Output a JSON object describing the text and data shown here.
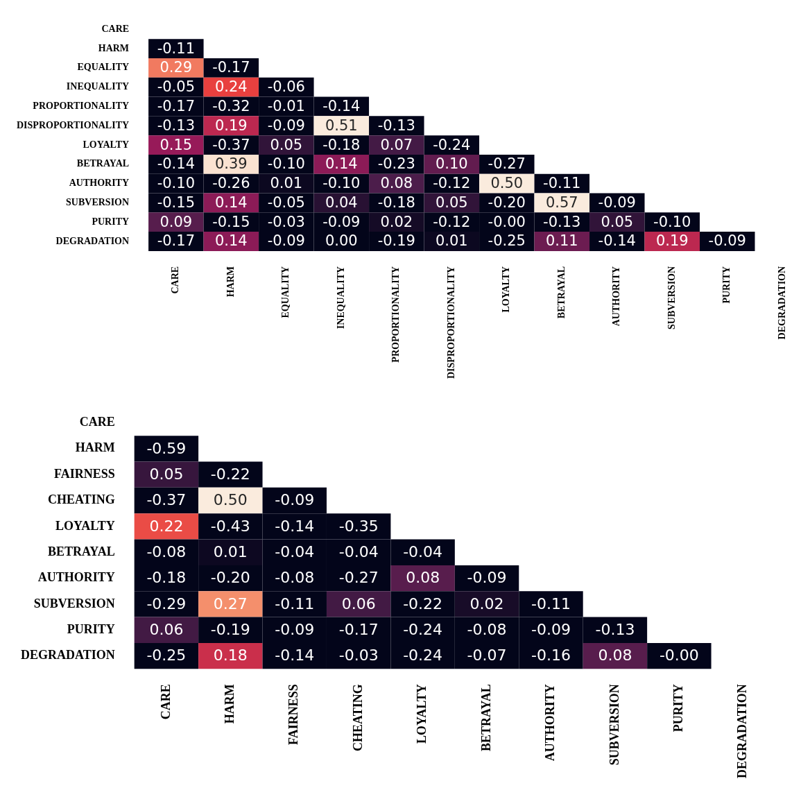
{
  "chart_data": [
    {
      "type": "heatmap",
      "categories": [
        "CARE",
        "HARM",
        "EQUALITY",
        "INEQUALITY",
        "PROPORTIONALITY",
        "DISPROPORTIONALITY",
        "LOYALTY",
        "BETRAYAL",
        "AUTHORITY",
        "SUBVERSION",
        "PURITY",
        "DEGRADATION"
      ],
      "y_categories": [
        "CARE",
        "HARM",
        "EQUALITY",
        "INEQUALITY",
        "PROPORTIONALITY",
        "DISPROPORTIONALITY",
        "LOYALTY",
        "BETRAYAL",
        "AUTHORITY",
        "SUBVERSION",
        "PURITY",
        "DEGRADATION"
      ],
      "cells": [
        [
          null,
          null,
          null,
          null,
          null,
          null,
          null,
          null,
          null,
          null,
          null,
          null
        ],
        [
          -0.11,
          null,
          null,
          null,
          null,
          null,
          null,
          null,
          null,
          null,
          null,
          null
        ],
        [
          0.29,
          -0.17,
          null,
          null,
          null,
          null,
          null,
          null,
          null,
          null,
          null,
          null
        ],
        [
          -0.05,
          0.24,
          -0.06,
          null,
          null,
          null,
          null,
          null,
          null,
          null,
          null,
          null
        ],
        [
          -0.17,
          -0.32,
          -0.01,
          -0.14,
          null,
          null,
          null,
          null,
          null,
          null,
          null,
          null
        ],
        [
          -0.13,
          0.19,
          -0.09,
          0.51,
          -0.13,
          null,
          null,
          null,
          null,
          null,
          null,
          null
        ],
        [
          0.15,
          -0.37,
          0.05,
          -0.18,
          0.07,
          -0.24,
          null,
          null,
          null,
          null,
          null,
          null
        ],
        [
          -0.14,
          0.39,
          -0.1,
          0.14,
          -0.23,
          0.1,
          -0.27,
          null,
          null,
          null,
          null,
          null
        ],
        [
          -0.1,
          -0.26,
          0.01,
          -0.1,
          0.08,
          -0.12,
          0.5,
          -0.11,
          null,
          null,
          null,
          null
        ],
        [
          -0.15,
          0.14,
          -0.05,
          0.04,
          -0.18,
          0.05,
          -0.2,
          0.57,
          -0.09,
          null,
          null,
          null
        ],
        [
          0.09,
          -0.15,
          -0.03,
          -0.09,
          0.02,
          -0.12,
          0,
          -0.13,
          0.05,
          -0.1,
          null,
          null
        ],
        [
          -0.17,
          0.14,
          -0.09,
          0.0,
          -0.19,
          0.01,
          -0.25,
          0.11,
          -0.14,
          0.19,
          -0.09,
          null
        ]
      ],
      "cell_labels": [
        [
          null,
          null,
          null,
          null,
          null,
          null,
          null,
          null,
          null,
          null,
          null,
          null
        ],
        [
          "-0.11",
          null,
          null,
          null,
          null,
          null,
          null,
          null,
          null,
          null,
          null,
          null
        ],
        [
          "0.29",
          "-0.17",
          null,
          null,
          null,
          null,
          null,
          null,
          null,
          null,
          null,
          null
        ],
        [
          "-0.05",
          "0.24",
          "-0.06",
          null,
          null,
          null,
          null,
          null,
          null,
          null,
          null,
          null
        ],
        [
          "-0.17",
          "-0.32",
          "-0.01",
          "-0.14",
          null,
          null,
          null,
          null,
          null,
          null,
          null,
          null
        ],
        [
          "-0.13",
          "0.19",
          "-0.09",
          "0.51",
          "-0.13",
          null,
          null,
          null,
          null,
          null,
          null,
          null
        ],
        [
          "0.15",
          "-0.37",
          "0.05",
          "-0.18",
          "0.07",
          "-0.24",
          null,
          null,
          null,
          null,
          null,
          null
        ],
        [
          "-0.14",
          "0.39",
          "-0.10",
          "0.14",
          "-0.23",
          "0.10",
          "-0.27",
          null,
          null,
          null,
          null,
          null
        ],
        [
          "-0.10",
          "-0.26",
          "0.01",
          "-0.10",
          "0.08",
          "-0.12",
          "0.50",
          "-0.11",
          null,
          null,
          null,
          null
        ],
        [
          "-0.15",
          "0.14",
          "-0.05",
          "0.04",
          "-0.18",
          "0.05",
          "-0.20",
          "0.57",
          "-0.09",
          null,
          null,
          null
        ],
        [
          "0.09",
          "-0.15",
          "-0.03",
          "-0.09",
          "0.02",
          "-0.12",
          "-0.00",
          "-0.13",
          "0.05",
          "-0.10",
          null,
          null
        ],
        [
          "-0.17",
          "0.14",
          "-0.09",
          "0.00",
          "-0.19",
          "0.01",
          "-0.25",
          "0.11",
          "-0.14",
          "0.19",
          "-0.09",
          null
        ]
      ]
    },
    {
      "type": "heatmap",
      "categories": [
        "CARE",
        "HARM",
        "FAIRNESS",
        "CHEATING",
        "LOYALTY",
        "BETRAYAL",
        "AUTHORITY",
        "SUBVERSION",
        "PURITY",
        "DEGRADATION"
      ],
      "y_categories": [
        "CARE",
        "HARM",
        "FAIRNESS",
        "CHEATING",
        "LOYALTY",
        "BETRAYAL",
        "AUTHORITY",
        "SUBVERSION",
        "PURITY",
        "DEGRADATION"
      ],
      "cells": [
        [
          null,
          null,
          null,
          null,
          null,
          null,
          null,
          null,
          null,
          null
        ],
        [
          -0.59,
          null,
          null,
          null,
          null,
          null,
          null,
          null,
          null,
          null
        ],
        [
          0.05,
          -0.22,
          null,
          null,
          null,
          null,
          null,
          null,
          null,
          null
        ],
        [
          -0.37,
          0.5,
          -0.09,
          null,
          null,
          null,
          null,
          null,
          null,
          null
        ],
        [
          0.22,
          -0.43,
          -0.14,
          -0.35,
          null,
          null,
          null,
          null,
          null,
          null
        ],
        [
          -0.08,
          0.01,
          -0.04,
          -0.04,
          -0.04,
          null,
          null,
          null,
          null,
          null
        ],
        [
          -0.18,
          -0.2,
          -0.08,
          -0.27,
          0.08,
          -0.09,
          null,
          null,
          null,
          null
        ],
        [
          -0.29,
          0.27,
          -0.11,
          0.06,
          -0.22,
          0.02,
          -0.11,
          null,
          null,
          null
        ],
        [
          0.06,
          -0.19,
          -0.09,
          -0.17,
          -0.24,
          -0.08,
          -0.09,
          -0.13,
          null,
          null
        ],
        [
          -0.25,
          0.18,
          -0.14,
          -0.03,
          -0.24,
          -0.07,
          -0.16,
          0.08,
          0,
          null
        ]
      ],
      "cell_labels": [
        [
          null,
          null,
          null,
          null,
          null,
          null,
          null,
          null,
          null,
          null
        ],
        [
          "-0.59",
          null,
          null,
          null,
          null,
          null,
          null,
          null,
          null,
          null
        ],
        [
          "0.05",
          "-0.22",
          null,
          null,
          null,
          null,
          null,
          null,
          null,
          null
        ],
        [
          "-0.37",
          "0.50",
          "-0.09",
          null,
          null,
          null,
          null,
          null,
          null,
          null
        ],
        [
          "0.22",
          "-0.43",
          "-0.14",
          "-0.35",
          null,
          null,
          null,
          null,
          null,
          null
        ],
        [
          "-0.08",
          "0.01",
          "-0.04",
          "-0.04",
          "-0.04",
          null,
          null,
          null,
          null,
          null
        ],
        [
          "-0.18",
          "-0.20",
          "-0.08",
          "-0.27",
          "0.08",
          "-0.09",
          null,
          null,
          null,
          null
        ],
        [
          "-0.29",
          "0.27",
          "-0.11",
          "0.06",
          "-0.22",
          "0.02",
          "-0.11",
          null,
          null,
          null
        ],
        [
          "0.06",
          "-0.19",
          "-0.09",
          "-0.17",
          "-0.24",
          "-0.08",
          "-0.09",
          "-0.13",
          null,
          null
        ],
        [
          "-0.25",
          "0.18",
          "-0.14",
          "-0.03",
          "-0.24",
          "-0.07",
          "-0.16",
          "0.08",
          "-0.00",
          null
        ]
      ]
    }
  ]
}
